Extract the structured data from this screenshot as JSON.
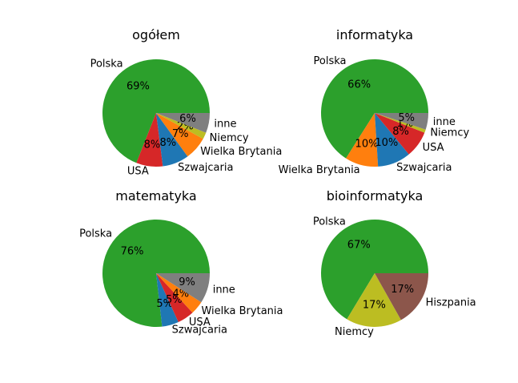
{
  "chart_data": [
    {
      "type": "pie",
      "title": "ogółem",
      "slices": [
        {
          "label": "Polska",
          "value": 69,
          "pct_label": "69%",
          "color": "#2ca02c"
        },
        {
          "label": "USA",
          "value": 8,
          "pct_label": "8%",
          "color": "#d62728"
        },
        {
          "label": "Szwajcaria",
          "value": 8,
          "pct_label": "8%",
          "color": "#1f77b4"
        },
        {
          "label": "Wielka Brytania",
          "value": 7,
          "pct_label": "7%",
          "color": "#ff7f0e"
        },
        {
          "label": "Niemcy",
          "value": 2,
          "pct_label": "2%",
          "color": "#bcbd22"
        },
        {
          "label": "inne",
          "value": 6,
          "pct_label": "6%",
          "color": "#7f7f7f"
        }
      ]
    },
    {
      "type": "pie",
      "title": "informatyka",
      "slices": [
        {
          "label": "Polska",
          "value": 66,
          "pct_label": "66%",
          "color": "#2ca02c"
        },
        {
          "label": "Wielka Brytania",
          "value": 10,
          "pct_label": "10%",
          "color": "#ff7f0e"
        },
        {
          "label": "Szwajcaria",
          "value": 10,
          "pct_label": "10%",
          "color": "#1f77b4"
        },
        {
          "label": "USA",
          "value": 8,
          "pct_label": "8%",
          "color": "#d62728"
        },
        {
          "label": "Niemcy",
          "value": 1,
          "pct_label": "1%",
          "color": "#bcbd22"
        },
        {
          "label": "inne",
          "value": 5,
          "pct_label": "5%",
          "color": "#7f7f7f"
        }
      ]
    },
    {
      "type": "pie",
      "title": "matematyka",
      "slices": [
        {
          "label": "Polska",
          "value": 76,
          "pct_label": "76%",
          "color": "#2ca02c"
        },
        {
          "label": "Szwajcaria",
          "value": 5,
          "pct_label": "5%",
          "color": "#1f77b4"
        },
        {
          "label": "USA",
          "value": 5,
          "pct_label": "5%",
          "color": "#d62728"
        },
        {
          "label": "Wielka Brytania",
          "value": 4,
          "pct_label": "4%",
          "color": "#ff7f0e"
        },
        {
          "label": "inne",
          "value": 9,
          "pct_label": "9%",
          "color": "#7f7f7f"
        }
      ]
    },
    {
      "type": "pie",
      "title": "bioinformatyka",
      "slices": [
        {
          "label": "Polska",
          "value": 67,
          "pct_label": "67%",
          "color": "#2ca02c"
        },
        {
          "label": "Niemcy",
          "value": 17,
          "pct_label": "17%",
          "color": "#bcbd22"
        },
        {
          "label": "Hiszpania",
          "value": 17,
          "pct_label": "17%",
          "color": "#8c564b"
        }
      ]
    }
  ]
}
